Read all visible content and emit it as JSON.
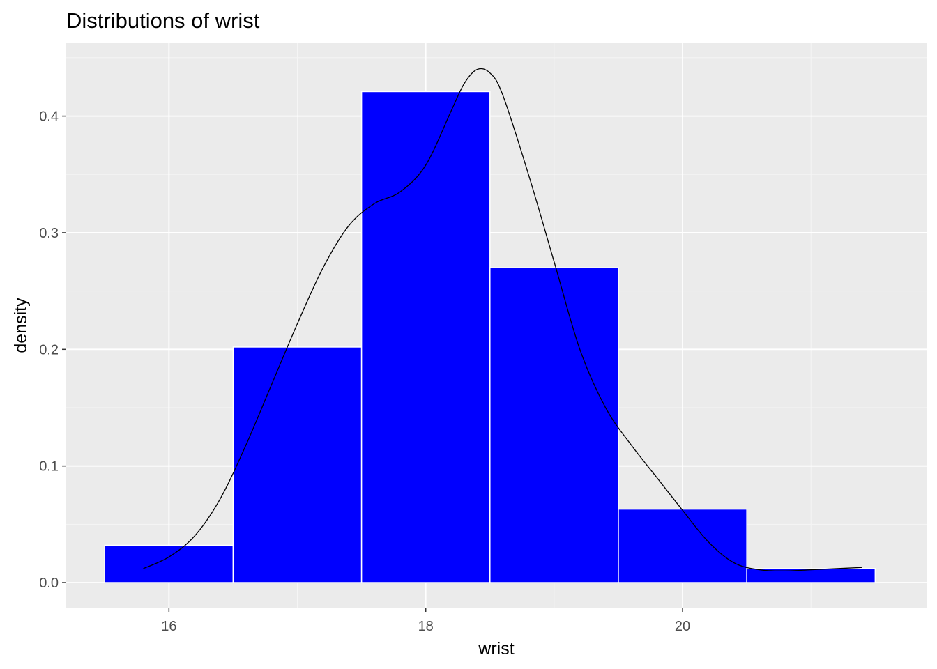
{
  "chart_data": {
    "type": "bar",
    "title": "Distributions of wrist",
    "xlabel": "wrist",
    "ylabel": "density",
    "xlim": [
      15.2,
      21.9
    ],
    "ylim": [
      -0.0215,
      0.4625
    ],
    "x_ticks": [
      16,
      18,
      20
    ],
    "x_tick_labels": [
      "16",
      "18",
      "20"
    ],
    "y_ticks": [
      0.0,
      0.1,
      0.2,
      0.3,
      0.4
    ],
    "y_tick_labels": [
      "0.0",
      "0.1",
      "0.2",
      "0.3",
      "0.4"
    ],
    "grid": true,
    "bins": [
      {
        "x0": 15.5,
        "x1": 16.5,
        "density": 0.032
      },
      {
        "x0": 16.5,
        "x1": 17.5,
        "density": 0.202
      },
      {
        "x0": 17.5,
        "x1": 18.5,
        "density": 0.421
      },
      {
        "x0": 18.5,
        "x1": 19.5,
        "density": 0.27
      },
      {
        "x0": 19.5,
        "x1": 20.5,
        "density": 0.063
      },
      {
        "x0": 20.5,
        "x1": 21.5,
        "density": 0.012
      }
    ],
    "density_curve": {
      "x": [
        15.8,
        16.0,
        16.2,
        16.4,
        16.6,
        16.8,
        17.0,
        17.2,
        17.4,
        17.6,
        17.8,
        18.0,
        18.2,
        18.3,
        18.4,
        18.5,
        18.6,
        18.8,
        19.0,
        19.2,
        19.4,
        19.6,
        19.8,
        20.0,
        20.2,
        20.4,
        20.6,
        20.8,
        21.0,
        21.2,
        21.4
      ],
      "y": [
        0.012,
        0.022,
        0.04,
        0.072,
        0.118,
        0.17,
        0.222,
        0.27,
        0.306,
        0.325,
        0.335,
        0.358,
        0.405,
        0.428,
        0.44,
        0.437,
        0.418,
        0.35,
        0.275,
        0.2,
        0.15,
        0.118,
        0.09,
        0.062,
        0.035,
        0.017,
        0.011,
        0.01,
        0.011,
        0.012,
        0.013
      ]
    },
    "colors": {
      "bar_fill": "#0000ff",
      "bar_outline": "#ffffff",
      "panel_background": "#ebebeb",
      "grid_major": "#ffffff",
      "grid_minor": "#f5f5f5",
      "curve": "#000000"
    }
  }
}
